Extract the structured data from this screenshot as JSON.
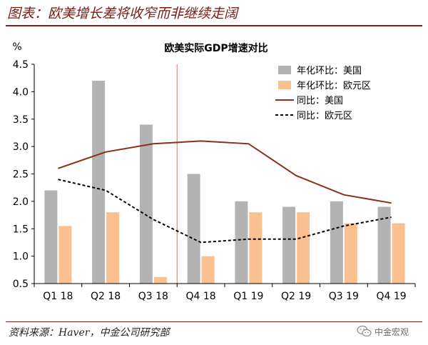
{
  "header": {
    "title": "图表：欧美增长差将收窄而非继续走阔"
  },
  "footer": {
    "source": "资料来源：Haver，中金公司研究部"
  },
  "watermark": {
    "text": "中金宏观",
    "icon": "wechat-icon"
  },
  "colors": {
    "title": "#7b1a12",
    "us_bar": "#b3b3b3",
    "ez_bar": "#fbc08f",
    "us_line": "#8b2f19",
    "ez_line": "#000000",
    "divider": "#c07b70"
  },
  "chart_data": {
    "type": "bar",
    "title": "欧美实际GDP增速对比",
    "ylabel": "%",
    "xlabel": "",
    "categories": [
      "Q1 18",
      "Q2 18",
      "Q3 18",
      "Q4 18",
      "Q1 19",
      "Q2 19",
      "Q3 19",
      "Q4 19"
    ],
    "ylim": [
      0.5,
      4.5
    ],
    "yticks": [
      "0.5",
      "1.0",
      "1.5",
      "2.0",
      "2.5",
      "3.0",
      "3.5",
      "4.0",
      "4.5"
    ],
    "grid": false,
    "legend_position": "top-right",
    "divider_after_category": "Q3 18",
    "series": [
      {
        "name": "年化环比：美国",
        "kind": "bar",
        "color": "#b3b3b3",
        "values": [
          2.2,
          4.2,
          3.4,
          2.5,
          2.0,
          1.9,
          2.0,
          1.9
        ]
      },
      {
        "name": "年化环比：欧元区",
        "kind": "bar",
        "color": "#fbc08f",
        "values": [
          1.55,
          1.8,
          0.62,
          1.0,
          1.8,
          1.8,
          1.6,
          1.6
        ]
      },
      {
        "name": "同比：美国",
        "kind": "line",
        "color": "#8b2f19",
        "dash": "solid",
        "values": [
          2.6,
          2.9,
          3.05,
          3.1,
          3.05,
          2.47,
          2.12,
          1.97
        ]
      },
      {
        "name": "同比：欧元区",
        "kind": "line",
        "color": "#000000",
        "dash": "dashed",
        "values": [
          2.4,
          2.2,
          1.67,
          1.25,
          1.31,
          1.31,
          1.55,
          1.71
        ]
      }
    ]
  }
}
